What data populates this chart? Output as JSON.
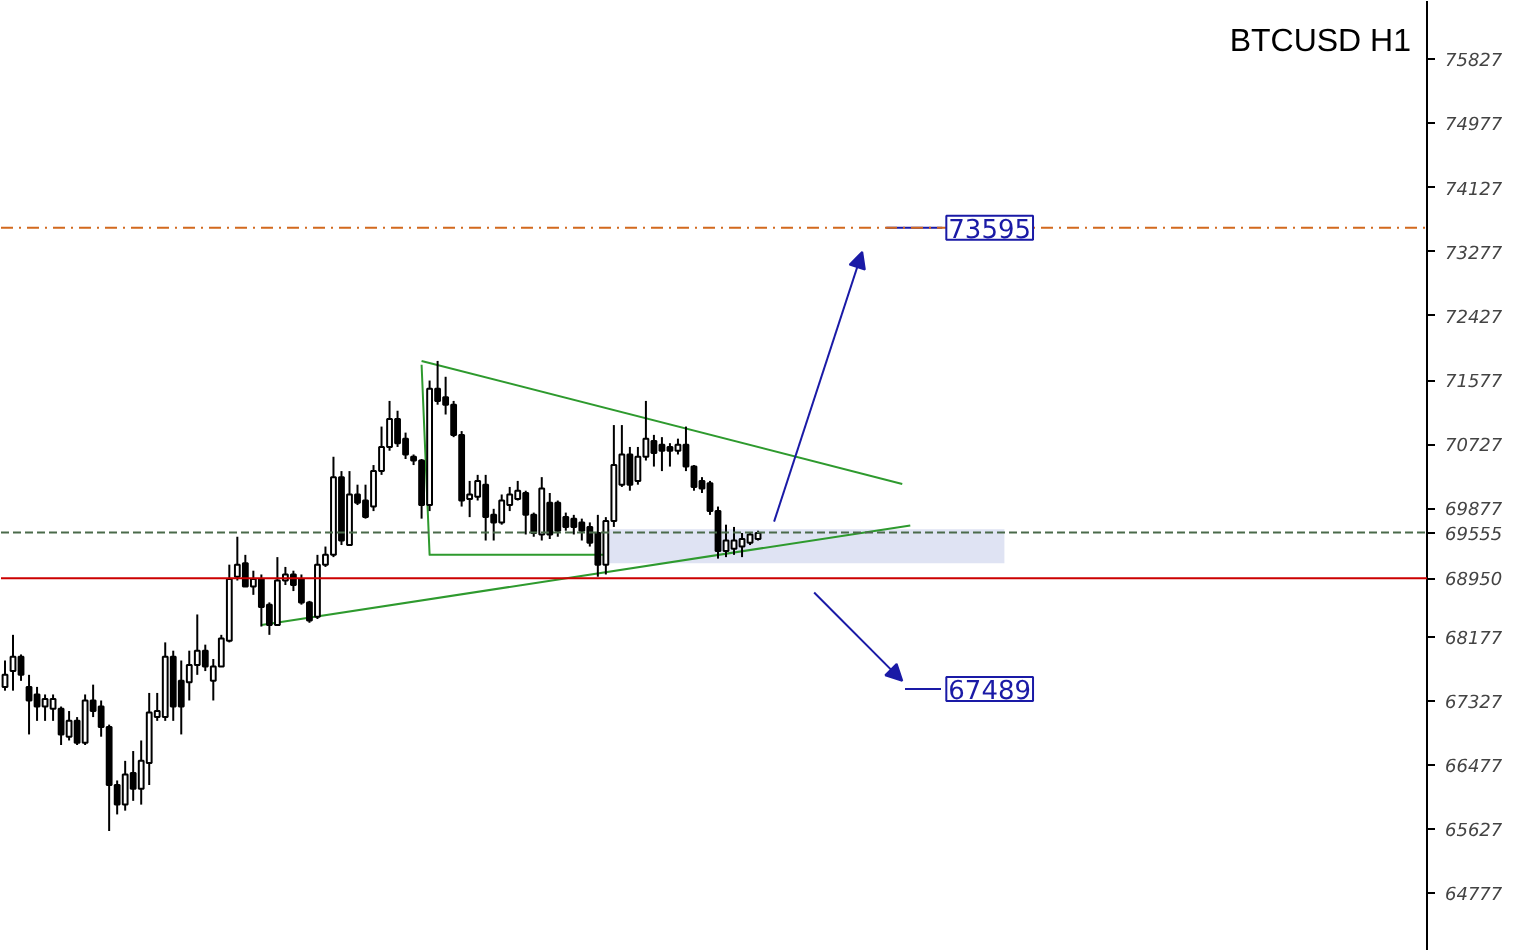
{
  "chart_data": {
    "type": "candlestick",
    "title": "BTCUSD H1",
    "categories": [
      null,
      null,
      null,
      null,
      null,
      null,
      null,
      null,
      null,
      null,
      null,
      null,
      null,
      null,
      null,
      null,
      null,
      null,
      null,
      null,
      null,
      null,
      null,
      null,
      null,
      null,
      null,
      null,
      null,
      null,
      null,
      null,
      null,
      null,
      null,
      null,
      null,
      null,
      null,
      null,
      null,
      null,
      null,
      null,
      null,
      null,
      null,
      null,
      null,
      null,
      null,
      null,
      null,
      null,
      null,
      null,
      null,
      null,
      null,
      null,
      null,
      null,
      null,
      null,
      null,
      null,
      null,
      null,
      null,
      null,
      null,
      null,
      null,
      null,
      null,
      null,
      null,
      null,
      null,
      null,
      null,
      null,
      null,
      null,
      null,
      null,
      null,
      null,
      null,
      null,
      null,
      null,
      null,
      null,
      null,
      null,
      null,
      null,
      null,
      null,
      null,
      null,
      null,
      null,
      null,
      null,
      null,
      null,
      null,
      null,
      null,
      null,
      null,
      null,
      null,
      null,
      null,
      null,
      null,
      null,
      null,
      null,
      null,
      null,
      null,
      null,
      null,
      null,
      null,
      null,
      null,
      null,
      null,
      null,
      null,
      null,
      null,
      null,
      null,
      null,
      null,
      null,
      null,
      null,
      null,
      null,
      null,
      null,
      null,
      null,
      null,
      null,
      null,
      null,
      null,
      null,
      null,
      null,
      null,
      null,
      null,
      null,
      null,
      null,
      null,
      null,
      null,
      null,
      null,
      null,
      null,
      null,
      null,
      null,
      null,
      null,
      null,
      null
    ],
    "ohlc": [
      [
        67510,
        67860,
        67460,
        67670
      ],
      [
        67720,
        68200,
        67460,
        67910
      ],
      [
        67910,
        67940,
        67590,
        67670
      ],
      [
        67510,
        67670,
        66880,
        67330
      ],
      [
        67410,
        67510,
        67060,
        67250
      ],
      [
        67250,
        67410,
        67060,
        67350
      ],
      [
        67220,
        67410,
        67060,
        67350
      ],
      [
        67220,
        67250,
        66740,
        66880
      ],
      [
        66850,
        67190,
        66800,
        67060
      ],
      [
        67060,
        67110,
        66740,
        66770
      ],
      [
        66770,
        67410,
        66740,
        67330
      ],
      [
        67330,
        67540,
        67110,
        67190
      ],
      [
        67250,
        67330,
        66850,
        66980
      ],
      [
        66980,
        67010,
        65600,
        66210
      ],
      [
        66210,
        66270,
        65820,
        65950
      ],
      [
        65950,
        66530,
        65870,
        66350
      ],
      [
        66370,
        66660,
        66000,
        66160
      ],
      [
        66160,
        66800,
        65950,
        66530
      ],
      [
        66500,
        67430,
        66210,
        67170
      ],
      [
        67110,
        67430,
        67060,
        67190
      ],
      [
        67110,
        68100,
        67060,
        67910
      ],
      [
        67910,
        67990,
        67060,
        67250
      ],
      [
        67590,
        67860,
        66880,
        67250
      ],
      [
        67570,
        67990,
        67330,
        67800
      ],
      [
        67800,
        68470,
        67670,
        67990
      ],
      [
        67990,
        68070,
        67720,
        67780
      ],
      [
        67590,
        67880,
        67330,
        67780
      ],
      [
        67780,
        68200,
        67780,
        68150
      ],
      [
        68120,
        69130,
        68100,
        68940
      ],
      [
        68970,
        69500,
        68920,
        69130
      ],
      [
        69150,
        69260,
        68840,
        68840
      ],
      [
        68840,
        69050,
        68730,
        68940
      ],
      [
        68940,
        69000,
        68310,
        68570
      ],
      [
        68600,
        68630,
        68200,
        68330
      ],
      [
        68330,
        69230,
        68330,
        68920
      ],
      [
        68920,
        69100,
        68860,
        69000
      ],
      [
        69000,
        69050,
        68780,
        68860
      ],
      [
        68940,
        69000,
        68600,
        68630
      ],
      [
        68630,
        68650,
        68360,
        68390
      ],
      [
        68440,
        69260,
        68410,
        69130
      ],
      [
        69130,
        69370,
        69100,
        69260
      ],
      [
        69260,
        70560,
        69230,
        70290
      ],
      [
        70290,
        70370,
        69390,
        69450
      ],
      [
        69390,
        70370,
        69390,
        70060
      ],
      [
        70060,
        70190,
        69920,
        69950
      ],
      [
        69980,
        70190,
        69740,
        69760
      ],
      [
        69900,
        70450,
        69840,
        70370
      ],
      [
        70370,
        70960,
        70320,
        70690
      ],
      [
        70690,
        71300,
        70640,
        71060
      ],
      [
        71060,
        71170,
        70690,
        70740
      ],
      [
        70800,
        70880,
        70530,
        70590
      ],
      [
        70560,
        70590,
        70450,
        70510
      ],
      [
        70510,
        70530,
        69740,
        69920
      ],
      [
        69920,
        71570,
        69840,
        71460
      ],
      [
        71460,
        71830,
        71250,
        71300
      ],
      [
        71350,
        71620,
        71120,
        71250
      ],
      [
        71250,
        71300,
        70820,
        70850
      ],
      [
        70850,
        70900,
        69900,
        69980
      ],
      [
        70000,
        70240,
        69760,
        70060
      ],
      [
        70030,
        70320,
        69980,
        70240
      ],
      [
        70190,
        70320,
        69450,
        69760
      ],
      [
        69790,
        69870,
        69450,
        69690
      ],
      [
        69690,
        70060,
        69660,
        69980
      ],
      [
        69920,
        70160,
        69840,
        70060
      ],
      [
        70000,
        70240,
        69980,
        70110
      ],
      [
        70080,
        70110,
        69530,
        69790
      ],
      [
        69790,
        69820,
        69500,
        69550
      ],
      [
        69530,
        70290,
        69450,
        70140
      ],
      [
        69950,
        70080,
        69470,
        69530
      ],
      [
        69950,
        69980,
        69500,
        69580
      ],
      [
        69760,
        69820,
        69580,
        69630
      ],
      [
        69740,
        69790,
        69530,
        69630
      ],
      [
        69690,
        69740,
        69450,
        69580
      ],
      [
        69630,
        69690,
        69370,
        69420
      ],
      [
        69550,
        69790,
        68970,
        69130
      ],
      [
        69130,
        69760,
        69000,
        69710
      ],
      [
        69710,
        70980,
        69630,
        70450
      ],
      [
        70190,
        70980,
        70160,
        70590
      ],
      [
        70590,
        70690,
        70110,
        70190
      ],
      [
        70240,
        70690,
        70190,
        70560
      ],
      [
        70560,
        71300,
        70510,
        70800
      ],
      [
        70770,
        70850,
        70430,
        70610
      ],
      [
        70720,
        70820,
        70370,
        70640
      ],
      [
        70690,
        70740,
        70430,
        70640
      ],
      [
        70640,
        70800,
        70590,
        70720
      ],
      [
        70720,
        70960,
        70370,
        70430
      ],
      [
        70430,
        70450,
        70110,
        70160
      ],
      [
        70240,
        70290,
        70080,
        70140
      ],
      [
        70210,
        70240,
        69790,
        69840
      ],
      [
        69840,
        69900,
        69210,
        69310
      ],
      [
        69310,
        69660,
        69230,
        69450
      ],
      [
        69340,
        69630,
        69260,
        69450
      ],
      [
        69370,
        69550,
        69230,
        69470
      ],
      [
        69420,
        69550,
        69390,
        69530
      ],
      [
        69470,
        69580,
        69450,
        69550
      ],
      null,
      null,
      null,
      null,
      null,
      null,
      null,
      null,
      null,
      null,
      null,
      null,
      null,
      null,
      null,
      null,
      null,
      null,
      null,
      null,
      null,
      null,
      null,
      null,
      null,
      null,
      null,
      null,
      null,
      null,
      null,
      null,
      null,
      null,
      null,
      null,
      null,
      null,
      null,
      null,
      null,
      null,
      null,
      null,
      null,
      null,
      null,
      null,
      null,
      null,
      null,
      null,
      null,
      null,
      null,
      null,
      null,
      null,
      null,
      null,
      null,
      null,
      null,
      null,
      null,
      null,
      null,
      null,
      null,
      null,
      null,
      null,
      null,
      null,
      null,
      null,
      null,
      null,
      null,
      null,
      null,
      null,
      null
    ],
    "color": "#000000",
    "series": [
      {
        "type": "line",
        "color": "#2e9a2e",
        "values": [
          null,
          null,
          null,
          null,
          null,
          null,
          null,
          null,
          null,
          null,
          null,
          null,
          null,
          null,
          null,
          null,
          null,
          null,
          null,
          null,
          null,
          null,
          null,
          null,
          null,
          null,
          null,
          null,
          null,
          null,
          null,
          null,
          null,
          null,
          null,
          null,
          null,
          null,
          null,
          null,
          null,
          null,
          null,
          null,
          null,
          null,
          null,
          null,
          null,
          null,
          null,
          null,
          71830,
          null,
          null,
          null,
          null,
          null,
          null,
          null,
          null,
          null,
          null,
          null,
          null,
          null,
          null,
          null,
          null,
          null,
          null,
          null,
          null,
          null,
          null,
          null,
          null,
          null,
          null,
          null,
          null,
          null,
          null,
          null,
          null,
          null,
          null,
          null,
          null,
          null,
          null,
          null,
          null,
          null,
          null,
          null,
          null,
          null,
          null,
          null,
          null,
          null,
          null,
          null,
          null,
          null,
          null,
          null,
          null,
          null,
          null,
          null,
          70200,
          null,
          null,
          null,
          null,
          null,
          null,
          null,
          null,
          null,
          null,
          null,
          null,
          null,
          null,
          null,
          null,
          null,
          null,
          null,
          null,
          null,
          null,
          null,
          null,
          null,
          null,
          null,
          null,
          null,
          null,
          null,
          null,
          null,
          null,
          null,
          null,
          null,
          null,
          null,
          null,
          null,
          null,
          null,
          null,
          null,
          null,
          null,
          null,
          null,
          null,
          null,
          null,
          null,
          null,
          null,
          null,
          null,
          null,
          null,
          null,
          null,
          null,
          null,
          null,
          null
        ]
      },
      {
        "type": "line",
        "color": "#2e9a2e",
        "values": [
          null,
          null,
          null,
          null,
          null,
          null,
          null,
          null,
          null,
          null,
          null,
          null,
          null,
          null,
          null,
          null,
          null,
          null,
          null,
          null,
          null,
          null,
          null,
          null,
          null,
          null,
          null,
          null,
          null,
          null,
          null,
          null,
          68330,
          null,
          null,
          null,
          null,
          null,
          null,
          null,
          null,
          null,
          null,
          null,
          null,
          null,
          null,
          null,
          null,
          null,
          null,
          null,
          null,
          null,
          null,
          null,
          null,
          null,
          null,
          null,
          null,
          null,
          null,
          null,
          null,
          null,
          null,
          null,
          null,
          null,
          null,
          null,
          null,
          null,
          null,
          null,
          null,
          null,
          null,
          null,
          null,
          null,
          null,
          null,
          null,
          null,
          null,
          null,
          null,
          null,
          null,
          null,
          null,
          null,
          null,
          null,
          null,
          null,
          null,
          null,
          null,
          null,
          null,
          null,
          null,
          null,
          null,
          null,
          null,
          null,
          null,
          null,
          null,
          69650,
          null,
          null,
          null,
          null,
          null,
          null,
          null,
          null,
          null,
          null,
          null,
          null,
          null,
          null,
          null,
          null,
          null,
          null,
          null,
          null,
          null,
          null,
          null,
          null,
          null,
          null,
          null,
          null,
          null,
          null,
          null,
          null,
          null,
          null,
          null,
          null,
          null,
          null,
          null,
          null,
          null,
          null,
          null,
          null,
          null,
          null,
          null,
          null,
          null,
          null,
          null,
          null,
          null,
          null,
          null,
          null,
          null,
          null,
          null,
          null,
          null,
          null,
          null,
          null
        ]
      },
      {
        "type": "line",
        "color": "#2e9a2e",
        "values": [
          null,
          null,
          null,
          null,
          null,
          null,
          null,
          null,
          null,
          null,
          null,
          null,
          null,
          null,
          null,
          null,
          null,
          null,
          null,
          null,
          null,
          null,
          null,
          null,
          null,
          null,
          null,
          null,
          null,
          null,
          null,
          null,
          null,
          null,
          null,
          null,
          null,
          null,
          null,
          null,
          null,
          null,
          null,
          null,
          null,
          null,
          null,
          null,
          null,
          null,
          null,
          null,
          71780,
          69260,
          null,
          null,
          null,
          null,
          null,
          null,
          null,
          null,
          null,
          null,
          null,
          null,
          null,
          null,
          null,
          null,
          null,
          null,
          null,
          null,
          null,
          69260,
          null,
          null,
          null,
          null,
          null,
          null,
          null,
          null,
          null,
          null,
          null,
          null,
          null,
          null,
          null,
          null,
          null,
          null,
          null,
          null,
          null,
          null,
          null,
          null,
          null,
          null,
          null,
          null,
          null,
          null,
          null,
          null,
          null,
          null,
          null,
          null,
          null,
          null,
          null,
          null,
          null,
          null,
          null,
          null,
          null,
          null,
          null,
          null,
          null,
          null,
          null,
          null,
          null,
          null,
          null,
          null,
          null,
          null,
          null,
          null,
          null,
          null,
          null,
          null,
          null,
          null,
          null,
          null,
          null,
          null,
          null,
          null,
          null,
          null,
          null,
          null,
          null,
          null,
          null,
          null,
          null,
          null,
          null,
          null,
          null,
          null,
          null,
          null,
          null,
          null,
          null,
          null,
          null,
          null,
          null,
          null,
          null,
          null,
          null,
          null,
          null,
          null
        ]
      }
    ],
    "ylim": [
      64010,
      76600
    ],
    "yticks": [
      64777,
      65627,
      66477,
      67327,
      68177,
      69877,
      70727,
      71577,
      72427,
      73277,
      74127,
      74977,
      75827
    ],
    "ref_lines": [
      {
        "axis": "y",
        "value": 73595,
        "color": "#d2691e",
        "line_style": "dashdot"
      },
      {
        "axis": "y",
        "value": 69555,
        "label": "69555",
        "color": "#4a6a4a",
        "line_style": "dashed"
      },
      {
        "axis": "y",
        "value": 68950,
        "label": "68950",
        "color": "#cc0000",
        "line_style": "solid"
      }
    ],
    "bands": [
      {
        "axis": "y",
        "from": 69150,
        "to": 69600,
        "color": "#dfe3f3"
      }
    ],
    "annotations": [
      {
        "text": "73595",
        "y": 73595
      },
      "67489"
    ],
    "grid": false
  }
}
